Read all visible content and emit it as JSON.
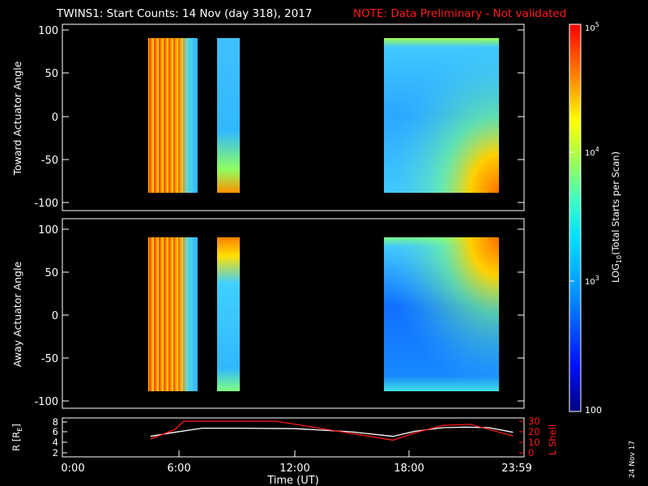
{
  "header": {
    "title": "TWINS1: Start Counts: 14 Nov (day 318), 2017",
    "note": "NOTE: Data Preliminary - Not validated",
    "note_color": "#ff1a1a"
  },
  "panels": {
    "top": {
      "ylabel": "Toward Actuator Angle"
    },
    "bottom": {
      "ylabel": "Away Actuator Angle"
    },
    "angle_ticks": [
      "100",
      "50",
      "0",
      "-50",
      "-100"
    ],
    "ephem": {
      "ylabel": "R [R",
      "ylabel_sub": "E",
      "ylabel_end": "]",
      "y_ticks": [
        "8",
        "6",
        "4",
        "2"
      ],
      "ylabel2": "L Shell",
      "y2_ticks": [
        "30",
        "20",
        "10",
        "0"
      ],
      "y2_color": "#ff1a1a"
    },
    "time_ticks": [
      "0:00",
      "6:00",
      "12:00",
      "18:00",
      "23:59"
    ],
    "xlabel": "Time (UT)"
  },
  "colorbar": {
    "label_main": "LOG",
    "label_sub": "10",
    "label_end": "(Total Starts per Scan)",
    "tick_top": "10",
    "tick_top_exp": "5",
    "tick_mid": "10",
    "tick_mid_exp": "4",
    "tick_low": "10",
    "tick_low_exp": "3",
    "tick_bottom": "100"
  },
  "footer": {
    "stamp": "24 Nov 17"
  },
  "chart_data": [
    {
      "type": "heatmap",
      "title": "TWINS1: Start Counts: 14 Nov (day 318), 2017",
      "xlabel": "Time (UT)",
      "ylabel": "Toward Actuator Angle",
      "xlim": [
        0,
        24
      ],
      "ylim": [
        -100,
        100
      ],
      "color_scale": "log",
      "clim": [
        100,
        100000
      ],
      "data_blocks_hours": [
        [
          4.2,
          7.0
        ],
        [
          8.0,
          9.2
        ],
        [
          17.3,
          23.8
        ]
      ],
      "series": [
        {
          "time_range": [
            4.2,
            7.0
          ],
          "level": "high, 1e4-1e5 (yellow/red)"
        },
        {
          "time_range": [
            8.0,
            9.2
          ],
          "level": "~1e3 (cyan), rising near -90"
        },
        {
          "time_range": [
            17.3,
            23.8
          ],
          "level": "~1e3 (light blue), rising near -90 at end"
        }
      ]
    },
    {
      "type": "heatmap",
      "xlabel": "Time (UT)",
      "ylabel": "Away Actuator Angle",
      "xlim": [
        0,
        24
      ],
      "ylim": [
        -100,
        100
      ],
      "color_scale": "log",
      "clim": [
        100,
        100000
      ],
      "data_blocks_hours": [
        [
          4.2,
          7.0
        ],
        [
          8.0,
          9.2
        ],
        [
          17.3,
          23.8
        ]
      ]
    },
    {
      "type": "line",
      "xlabel": "Time (UT)",
      "ylabel": "R [RE]",
      "ylim": [
        1,
        8.5
      ],
      "y2label": "L Shell",
      "y2lim": [
        0,
        30
      ],
      "series": [
        {
          "name": "R",
          "color": "#ffffff",
          "x": [
            4.2,
            5.5,
            7.0,
            9.0,
            12.0,
            15.0,
            17.3,
            18.5,
            20.0,
            21.2,
            22.5,
            23.8
          ],
          "y": [
            5.2,
            6.0,
            6.8,
            6.8,
            6.7,
            6.1,
            5.2,
            6.2,
            6.9,
            7.0,
            6.9,
            6.0
          ]
        },
        {
          "name": "L Shell",
          "color": "#ff1a1a",
          "x": [
            4.2,
            5.5,
            6.0,
            11.0,
            17.3,
            18.5,
            20.0,
            21.5,
            23.8
          ],
          "y": [
            13,
            22,
            30,
            30,
            12,
            19,
            26,
            27,
            16
          ]
        }
      ]
    }
  ]
}
